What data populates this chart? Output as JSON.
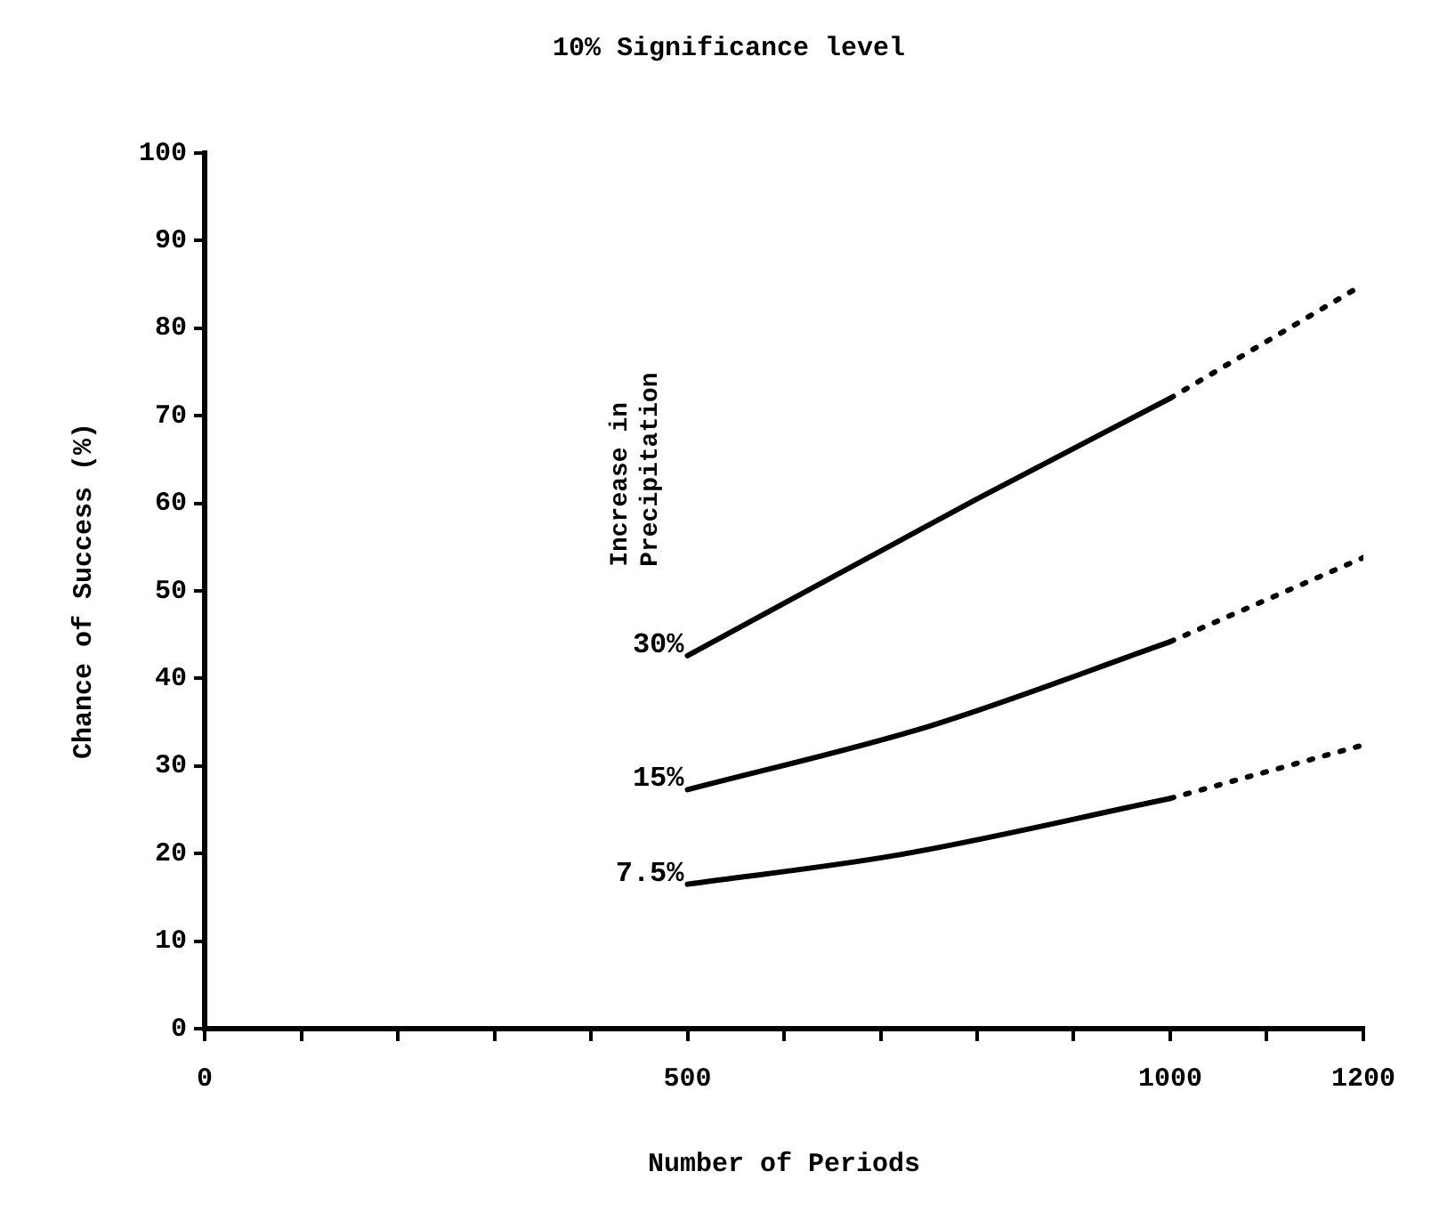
{
  "chart_data": {
    "type": "line",
    "title": "10% Significance level",
    "xlabel": "Number of Periods",
    "ylabel": "Chance of Success (%)",
    "legend_title": "Increase in\nPrecipitation",
    "xlim": [
      0,
      1200
    ],
    "ylim": [
      0,
      100
    ],
    "xticks": [
      0,
      {
        "value": 100,
        "label": null
      },
      {
        "value": 200,
        "label": null
      },
      {
        "value": 300,
        "label": null
      },
      {
        "value": 400,
        "label": null
      },
      500,
      {
        "value": 600,
        "label": null
      },
      {
        "value": 700,
        "label": null
      },
      {
        "value": 800,
        "label": null
      },
      {
        "value": 900,
        "label": null
      },
      1000,
      {
        "value": 1100,
        "label": null
      },
      1200
    ],
    "yticks": [
      0,
      10,
      20,
      30,
      40,
      50,
      60,
      70,
      80,
      90,
      100
    ],
    "grid": false,
    "legend": false,
    "marker": "none",
    "line_style": "solid",
    "series": [
      {
        "name": "30%",
        "color": "#000000",
        "x": [
          500,
          800,
          1000
        ],
        "values": [
          42.6,
          60.5,
          72
        ]
      },
      {
        "color": "#000000",
        "line_style": "dotted",
        "x": [
          1000,
          1200
        ],
        "values": [
          72,
          85
        ]
      },
      {
        "name": "15%",
        "color": "#000000",
        "x": [
          500,
          752,
          1000
        ],
        "values": [
          27.3,
          34.6,
          44.2
        ]
      },
      {
        "color": "#000000",
        "line_style": "dotted",
        "x": [
          1000,
          1200
        ],
        "values": [
          44.2,
          53.8
        ]
      },
      {
        "name": "7.5%",
        "color": "#000000",
        "x": [
          500,
          716,
          1000
        ],
        "values": [
          16.5,
          19.8,
          26.3
        ]
      },
      {
        "color": "#000000",
        "line_style": "dotted",
        "x": [
          1000,
          1200
        ],
        "values": [
          26.3,
          32.4
        ]
      }
    ]
  }
}
